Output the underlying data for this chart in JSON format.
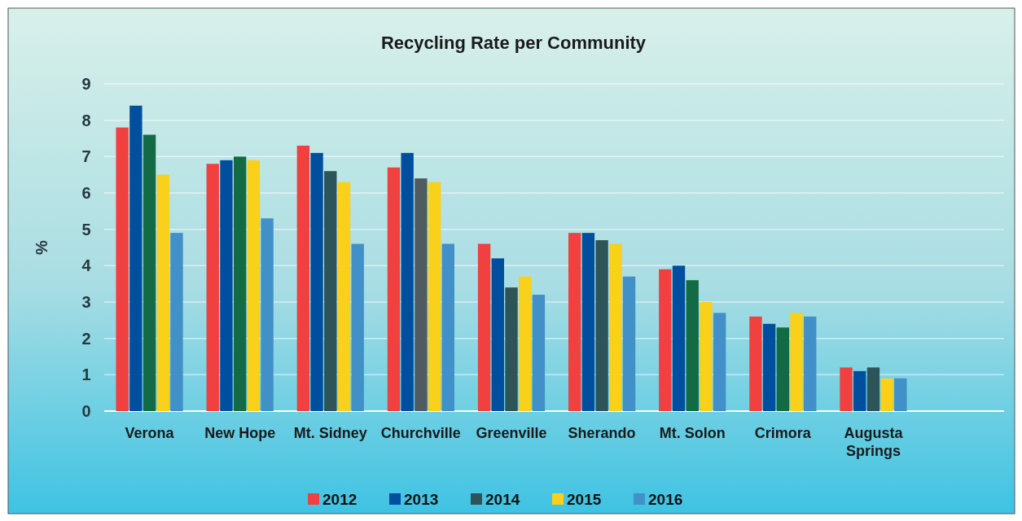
{
  "chart_data": {
    "type": "bar",
    "title": "Recycling Rate per Community",
    "ylabel": "%",
    "categories": [
      "Verona",
      "New Hope",
      "Mt. Sidney",
      "Churchville",
      "Greenville",
      "Sherando",
      "Mt. Solon",
      "Crimora",
      "Augusta Springs"
    ],
    "series": [
      {
        "name": "2012",
        "color": "#f0403f",
        "values": [
          7.8,
          6.8,
          7.3,
          6.7,
          4.6,
          4.9,
          3.9,
          2.6,
          1.2
        ]
      },
      {
        "name": "2013",
        "color": "#004f9e",
        "values": [
          8.4,
          6.9,
          7.1,
          7.1,
          4.2,
          4.9,
          4.0,
          2.4,
          1.1
        ]
      },
      {
        "name": "2014",
        "color": "#2d5459",
        "colors": [
          "#126b45",
          "#126b45",
          "#2d5459",
          "#4f5b60",
          "#2d5459",
          "#2d5459",
          "#126b45",
          "#126b45",
          "#2d5459"
        ],
        "values": [
          7.6,
          7.0,
          6.6,
          6.4,
          3.4,
          4.7,
          3.6,
          2.3,
          1.2
        ]
      },
      {
        "name": "2015",
        "color": "#f9d01a",
        "values": [
          6.5,
          6.9,
          6.3,
          6.3,
          3.7,
          4.6,
          3.0,
          2.7,
          0.9
        ]
      },
      {
        "name": "2016",
        "color": "#4190c8",
        "values": [
          4.9,
          5.3,
          4.6,
          4.6,
          3.2,
          3.7,
          2.7,
          2.6,
          0.9
        ]
      }
    ],
    "ylim": [
      0,
      9
    ],
    "yticks": [
      0,
      1,
      2,
      3,
      4,
      5,
      6,
      7,
      8,
      9
    ],
    "grid": "y",
    "legend": "bottom"
  }
}
